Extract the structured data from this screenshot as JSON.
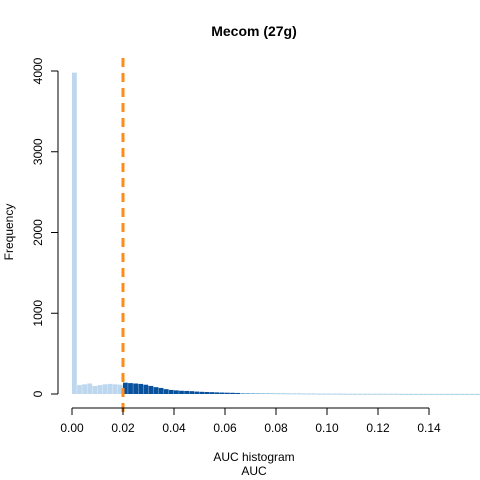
{
  "chart_data": {
    "type": "bar",
    "title": "Mecom (27g)",
    "xlabel": "AUC histogram",
    "xlabel_sub": "AUC",
    "ylabel": "Frequency",
    "xlim": [
      0,
      0.14
    ],
    "ylim": [
      0,
      4000
    ],
    "x_ticks": [
      "0.00",
      "0.02",
      "0.04",
      "0.06",
      "0.08",
      "0.10",
      "0.12",
      "0.14"
    ],
    "y_ticks": [
      "0",
      "1000",
      "2000",
      "3000",
      "4000"
    ],
    "bin_width": 0.002,
    "threshold": 0.02,
    "colors": {
      "below_threshold_bar": "#bdd7ee",
      "above_threshold_bar": "#08519c",
      "tail_bar": "#6baed6",
      "threshold_line": "#ff8c1a",
      "axis": "#000000"
    },
    "series": [
      {
        "values": [
          3980,
          110,
          120,
          130,
          100,
          110,
          120,
          125,
          120,
          115,
          140,
          135,
          130,
          125,
          115,
          100,
          85,
          75,
          60,
          50,
          45,
          40,
          38,
          35,
          30,
          27,
          25,
          23,
          20,
          18,
          16,
          15,
          13,
          12,
          11,
          10,
          9,
          8,
          8,
          7,
          6,
          6,
          5,
          5,
          5,
          4,
          4,
          4,
          3,
          3,
          3,
          3,
          3,
          2,
          2,
          2,
          2,
          2,
          2,
          2,
          2,
          2,
          2,
          2,
          1,
          1,
          1,
          1,
          1,
          1,
          1,
          1,
          1,
          1,
          1,
          1,
          1,
          1,
          1,
          1,
          1,
          1,
          1,
          1,
          1,
          1,
          1
        ]
      }
    ]
  }
}
